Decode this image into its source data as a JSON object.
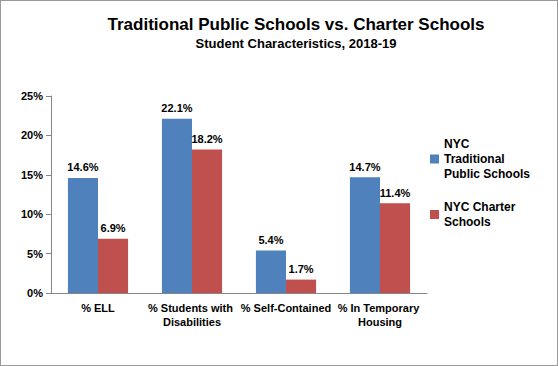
{
  "chart_data": {
    "type": "bar",
    "title": "Traditional Public Schools vs. Charter Schools",
    "subtitle": "Student Characteristics, 2018-19",
    "categories": [
      "% ELL",
      "% Students with Disabilities",
      "% Self-Contained",
      "% In Temporary Housing"
    ],
    "series": [
      {
        "name": "NYC Traditional Public Schools",
        "color": "#4f81bd",
        "values": [
          14.6,
          22.1,
          5.4,
          14.7
        ],
        "value_labels": [
          "14.6%",
          "22.1%",
          "5.4%",
          "14.7%"
        ]
      },
      {
        "name": "NYC Charter Schools",
        "color": "#c0504d",
        "values": [
          6.9,
          18.2,
          1.7,
          11.4
        ],
        "value_labels": [
          "6.9%",
          "18.2%",
          "1.7%",
          "11.4%"
        ]
      }
    ],
    "ylim": [
      0,
      25
    ],
    "yticks": [
      {
        "value": 0,
        "label": "0%"
      },
      {
        "value": 5,
        "label": "5%"
      },
      {
        "value": 10,
        "label": "10%"
      },
      {
        "value": 15,
        "label": "15%"
      },
      {
        "value": 20,
        "label": "20%"
      },
      {
        "value": 25,
        "label": "25%"
      }
    ],
    "grid": false,
    "legend": "right",
    "data_labels": true
  }
}
